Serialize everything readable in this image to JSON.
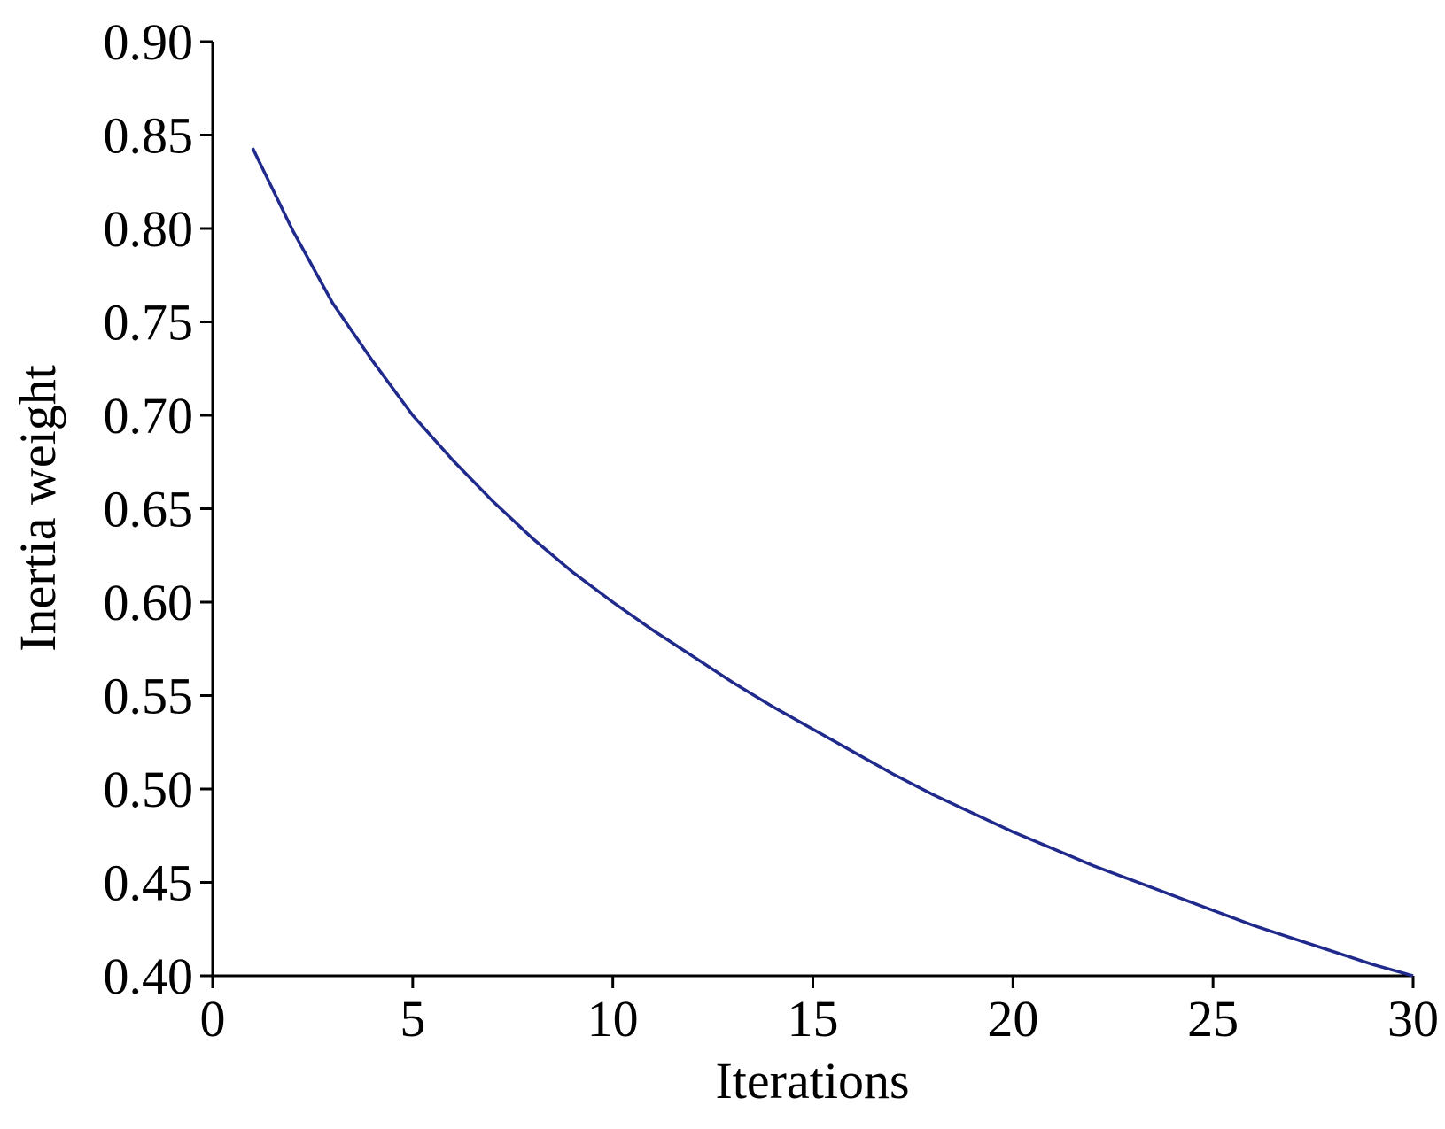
{
  "chart_data": {
    "type": "line",
    "x_label": "Iterations",
    "y_label": "Inertia weight",
    "x": [
      1,
      2,
      3,
      4,
      5,
      6,
      7,
      8,
      9,
      10,
      11,
      12,
      13,
      14,
      15,
      16,
      17,
      18,
      19,
      20,
      21,
      22,
      23,
      24,
      25,
      26,
      27,
      28,
      29,
      30
    ],
    "series": [
      {
        "color": "#1f2a8c",
        "values": [
          0.843,
          0.799,
          0.76,
          0.729,
          0.7,
          0.676,
          0.654,
          0.634,
          0.616,
          0.6,
          0.585,
          0.571,
          0.557,
          0.544,
          0.532,
          0.52,
          0.508,
          0.497,
          0.487,
          0.477,
          0.468,
          0.459,
          0.451,
          0.443,
          0.435,
          0.427,
          0.42,
          0.413,
          0.406,
          0.4
        ]
      }
    ],
    "xlim": [
      0,
      30
    ],
    "xticks": [
      0,
      5,
      10,
      15,
      20,
      25,
      30
    ],
    "ylim": [
      0.4,
      0.9
    ],
    "yticks": [
      {
        "value": 0.4,
        "label": "0.40"
      },
      {
        "value": 0.45,
        "label": "0.45"
      },
      {
        "value": 0.5,
        "label": "0.50"
      },
      {
        "value": 0.55,
        "label": "0.55"
      },
      {
        "value": 0.6,
        "label": "0.60"
      },
      {
        "value": 0.65,
        "label": "0.65"
      },
      {
        "value": 0.7,
        "label": "0.70"
      },
      {
        "value": 0.75,
        "label": "0.75"
      },
      {
        "value": 0.8,
        "label": "0.80"
      },
      {
        "value": 0.85,
        "label": "0.85"
      },
      {
        "value": 0.9,
        "label": "0.90"
      }
    ],
    "grid": false
  }
}
